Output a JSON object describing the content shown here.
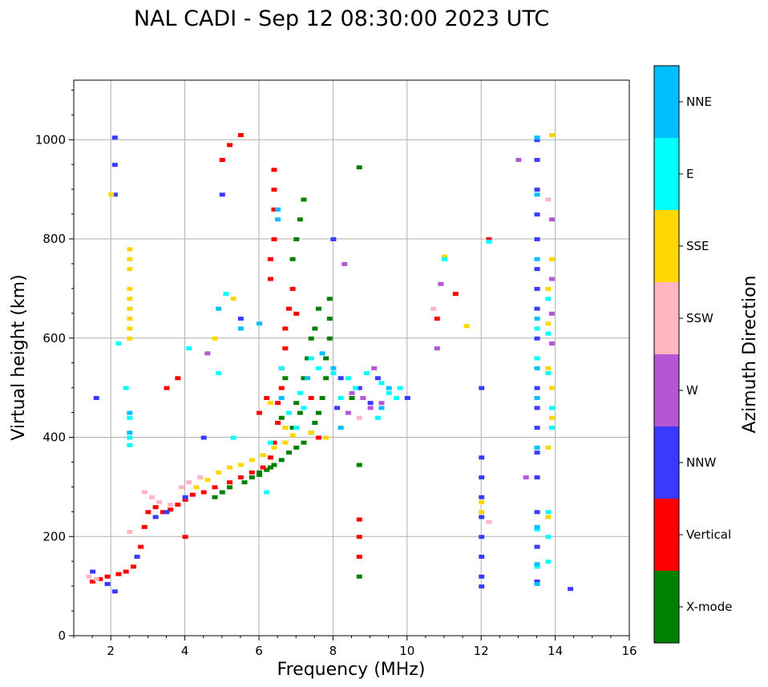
{
  "chart_data": {
    "type": "scatter",
    "title": "NAL CADI - Sep 12 08:30:00 2023 UTC",
    "xlabel": "Frequency (MHz)",
    "ylabel": "Virtual height (km)",
    "xlim": [
      1,
      16
    ],
    "ylim": [
      0,
      1120
    ],
    "xticks": [
      2,
      4,
      6,
      8,
      10,
      12,
      14,
      16
    ],
    "yticks": [
      0,
      200,
      400,
      600,
      800,
      1000
    ],
    "grid": true,
    "colorbar": {
      "label": "Azimuth Direction",
      "categories": [
        "X-mode",
        "Vertical",
        "NNW",
        "W",
        "SSW",
        "SSE",
        "E",
        "NNE"
      ],
      "colors": [
        "#008000",
        "#ff0000",
        "#3a3aff",
        "#b456d6",
        "#ffb6c1",
        "#ffd700",
        "#00ffff",
        "#00bfff"
      ]
    },
    "series": [
      {
        "name": "X-mode",
        "points": [
          [
            5.6,
            310
          ],
          [
            5.8,
            320
          ],
          [
            6.0,
            325
          ],
          [
            6.2,
            335
          ],
          [
            6.4,
            345
          ],
          [
            6.6,
            355
          ],
          [
            6.8,
            370
          ],
          [
            7.0,
            380
          ],
          [
            7.2,
            390
          ],
          [
            7.4,
            410
          ],
          [
            7.5,
            430
          ],
          [
            7.6,
            450
          ],
          [
            7.7,
            480
          ],
          [
            7.8,
            520
          ],
          [
            7.8,
            560
          ],
          [
            7.9,
            600
          ],
          [
            7.9,
            640
          ],
          [
            7.9,
            680
          ],
          [
            7.3,
            560
          ],
          [
            7.4,
            600
          ],
          [
            7.2,
            520
          ],
          [
            7.0,
            470
          ],
          [
            5.0,
            290
          ],
          [
            5.2,
            300
          ],
          [
            4.8,
            280
          ],
          [
            6.9,
            760
          ],
          [
            7.0,
            800
          ],
          [
            7.1,
            840
          ],
          [
            7.2,
            880
          ],
          [
            8.7,
            945
          ],
          [
            8.7,
            345
          ],
          [
            8.7,
            120
          ],
          [
            6.0,
            330
          ],
          [
            6.3,
            340
          ],
          [
            6.6,
            440
          ],
          [
            6.9,
            420
          ],
          [
            7.1,
            450
          ],
          [
            6.7,
            520
          ],
          [
            7.5,
            620
          ],
          [
            7.6,
            660
          ],
          [
            8.5,
            480
          ]
        ]
      },
      {
        "name": "Vertical",
        "points": [
          [
            1.5,
            110
          ],
          [
            1.7,
            115
          ],
          [
            1.9,
            120
          ],
          [
            2.2,
            125
          ],
          [
            2.4,
            130
          ],
          [
            2.6,
            140
          ],
          [
            2.8,
            180
          ],
          [
            2.9,
            220
          ],
          [
            3.0,
            250
          ],
          [
            3.2,
            260
          ],
          [
            3.4,
            250
          ],
          [
            3.6,
            255
          ],
          [
            3.8,
            265
          ],
          [
            4.0,
            275
          ],
          [
            4.2,
            285
          ],
          [
            4.5,
            290
          ],
          [
            4.8,
            300
          ],
          [
            5.2,
            310
          ],
          [
            5.5,
            320
          ],
          [
            5.8,
            330
          ],
          [
            6.1,
            340
          ],
          [
            6.3,
            360
          ],
          [
            6.4,
            390
          ],
          [
            6.5,
            430
          ],
          [
            6.5,
            470
          ],
          [
            6.6,
            500
          ],
          [
            6.6,
            540
          ],
          [
            6.7,
            580
          ],
          [
            6.7,
            620
          ],
          [
            6.8,
            660
          ],
          [
            6.3,
            720
          ],
          [
            6.3,
            760
          ],
          [
            6.4,
            800
          ],
          [
            6.4,
            860
          ],
          [
            6.4,
            900
          ],
          [
            6.4,
            940
          ],
          [
            5.0,
            960
          ],
          [
            5.2,
            990
          ],
          [
            5.5,
            1010
          ],
          [
            3.5,
            500
          ],
          [
            3.8,
            520
          ],
          [
            6.9,
            700
          ],
          [
            7.0,
            650
          ],
          [
            7.4,
            480
          ],
          [
            7.6,
            400
          ],
          [
            6.2,
            480
          ],
          [
            6.0,
            450
          ],
          [
            4.0,
            200
          ],
          [
            8.7,
            235
          ],
          [
            8.7,
            200
          ],
          [
            8.7,
            160
          ],
          [
            10.8,
            640
          ],
          [
            11.3,
            690
          ],
          [
            12.2,
            800
          ]
        ]
      },
      {
        "name": "NNW",
        "points": [
          [
            1.5,
            130
          ],
          [
            1.9,
            105
          ],
          [
            2.1,
            90
          ],
          [
            2.7,
            160
          ],
          [
            3.2,
            240
          ],
          [
            3.5,
            250
          ],
          [
            4.0,
            280
          ],
          [
            2.1,
            1005
          ],
          [
            2.1,
            950
          ],
          [
            2.1,
            890
          ],
          [
            1.6,
            480
          ],
          [
            8.0,
            800
          ],
          [
            8.2,
            520
          ],
          [
            8.1,
            460
          ],
          [
            9.2,
            520
          ],
          [
            10.0,
            480
          ],
          [
            12.0,
            500
          ],
          [
            12.0,
            360
          ],
          [
            12.0,
            320
          ],
          [
            12.0,
            280
          ],
          [
            12.0,
            240
          ],
          [
            12.0,
            200
          ],
          [
            12.0,
            160
          ],
          [
            12.0,
            120
          ],
          [
            12.0,
            100
          ],
          [
            13.5,
            1000
          ],
          [
            13.5,
            960
          ],
          [
            13.5,
            900
          ],
          [
            13.5,
            850
          ],
          [
            13.5,
            800
          ],
          [
            13.5,
            740
          ],
          [
            13.5,
            700
          ],
          [
            13.5,
            660
          ],
          [
            13.5,
            600
          ],
          [
            13.5,
            560
          ],
          [
            13.5,
            500
          ],
          [
            13.5,
            460
          ],
          [
            13.5,
            420
          ],
          [
            13.5,
            370
          ],
          [
            13.5,
            320
          ],
          [
            13.5,
            250
          ],
          [
            13.5,
            180
          ],
          [
            13.5,
            140
          ],
          [
            13.5,
            110
          ],
          [
            14.4,
            95
          ],
          [
            8.7,
            500
          ],
          [
            9.0,
            470
          ],
          [
            4.5,
            400
          ],
          [
            5.5,
            640
          ],
          [
            5.0,
            890
          ]
        ]
      },
      {
        "name": "W",
        "points": [
          [
            8.5,
            490
          ],
          [
            8.8,
            480
          ],
          [
            9.0,
            460
          ],
          [
            9.3,
            470
          ],
          [
            8.3,
            750
          ],
          [
            10.9,
            710
          ],
          [
            10.8,
            580
          ],
          [
            13.0,
            960
          ],
          [
            13.2,
            320
          ],
          [
            13.9,
            720
          ],
          [
            13.9,
            650
          ],
          [
            13.9,
            590
          ],
          [
            13.9,
            840
          ],
          [
            4.6,
            570
          ],
          [
            9.1,
            540
          ],
          [
            8.4,
            450
          ]
        ]
      },
      {
        "name": "SSW",
        "points": [
          [
            1.4,
            120
          ],
          [
            1.6,
            115
          ],
          [
            2.5,
            210
          ],
          [
            2.9,
            290
          ],
          [
            3.1,
            280
          ],
          [
            3.3,
            270
          ],
          [
            3.6,
            265
          ],
          [
            3.9,
            300
          ],
          [
            4.1,
            310
          ],
          [
            4.4,
            320
          ],
          [
            13.8,
            880
          ],
          [
            10.7,
            660
          ],
          [
            12.2,
            230
          ],
          [
            8.7,
            440
          ]
        ]
      },
      {
        "name": "SSE",
        "points": [
          [
            2.5,
            780
          ],
          [
            2.5,
            760
          ],
          [
            2.5,
            740
          ],
          [
            2.5,
            700
          ],
          [
            2.5,
            680
          ],
          [
            2.5,
            660
          ],
          [
            2.5,
            640
          ],
          [
            2.5,
            620
          ],
          [
            2.5,
            600
          ],
          [
            2.0,
            890
          ],
          [
            4.3,
            300
          ],
          [
            4.6,
            315
          ],
          [
            4.9,
            330
          ],
          [
            5.2,
            340
          ],
          [
            5.5,
            345
          ],
          [
            5.8,
            355
          ],
          [
            6.1,
            365
          ],
          [
            6.4,
            380
          ],
          [
            6.7,
            390
          ],
          [
            6.9,
            405
          ],
          [
            4.8,
            600
          ],
          [
            5.3,
            680
          ],
          [
            6.3,
            470
          ],
          [
            7.4,
            410
          ],
          [
            7.8,
            400
          ],
          [
            11.0,
            765
          ],
          [
            11.6,
            625
          ],
          [
            13.9,
            1010
          ],
          [
            13.9,
            760
          ],
          [
            13.8,
            700
          ],
          [
            13.8,
            630
          ],
          [
            13.8,
            540
          ],
          [
            13.9,
            500
          ],
          [
            13.9,
            440
          ],
          [
            13.9,
            420
          ],
          [
            13.8,
            380
          ],
          [
            13.8,
            240
          ],
          [
            12.0,
            250
          ],
          [
            12.0,
            270
          ],
          [
            6.7,
            420
          ]
        ]
      },
      {
        "name": "E",
        "points": [
          [
            2.5,
            440
          ],
          [
            2.5,
            400
          ],
          [
            2.5,
            385
          ],
          [
            2.2,
            590
          ],
          [
            2.4,
            500
          ],
          [
            4.9,
            530
          ],
          [
            5.3,
            400
          ],
          [
            6.2,
            290
          ],
          [
            6.3,
            390
          ],
          [
            6.6,
            540
          ],
          [
            6.8,
            450
          ],
          [
            7.0,
            420
          ],
          [
            7.2,
            460
          ],
          [
            7.4,
            560
          ],
          [
            7.6,
            540
          ],
          [
            8.0,
            530
          ],
          [
            8.2,
            480
          ],
          [
            8.4,
            520
          ],
          [
            8.6,
            500
          ],
          [
            8.9,
            530
          ],
          [
            9.3,
            510
          ],
          [
            9.5,
            490
          ],
          [
            9.7,
            480
          ],
          [
            9.8,
            500
          ],
          [
            9.2,
            440
          ],
          [
            11.0,
            760
          ],
          [
            12.2,
            795
          ],
          [
            13.8,
            250
          ],
          [
            13.8,
            200
          ],
          [
            13.9,
            460
          ],
          [
            13.8,
            530
          ],
          [
            13.8,
            610
          ],
          [
            13.8,
            680
          ],
          [
            13.9,
            420
          ],
          [
            13.8,
            150
          ],
          [
            13.5,
            215
          ],
          [
            13.5,
            140
          ],
          [
            13.5,
            560
          ],
          [
            13.5,
            620
          ],
          [
            4.1,
            580
          ],
          [
            5.1,
            690
          ],
          [
            7.1,
            490
          ]
        ]
      },
      {
        "name": "NNE",
        "points": [
          [
            2.5,
            450
          ],
          [
            2.5,
            410
          ],
          [
            6.5,
            860
          ],
          [
            6.5,
            840
          ],
          [
            4.9,
            660
          ],
          [
            5.5,
            620
          ],
          [
            6.0,
            630
          ],
          [
            6.6,
            480
          ],
          [
            7.3,
            520
          ],
          [
            7.7,
            570
          ],
          [
            8.0,
            540
          ],
          [
            8.2,
            420
          ],
          [
            9.5,
            500
          ],
          [
            9.3,
            460
          ],
          [
            13.5,
            1005
          ],
          [
            13.5,
            890
          ],
          [
            13.5,
            760
          ],
          [
            13.5,
            640
          ],
          [
            13.5,
            540
          ],
          [
            13.5,
            480
          ],
          [
            13.5,
            380
          ],
          [
            13.5,
            220
          ],
          [
            13.5,
            145
          ],
          [
            13.5,
            105
          ]
        ]
      }
    ]
  }
}
